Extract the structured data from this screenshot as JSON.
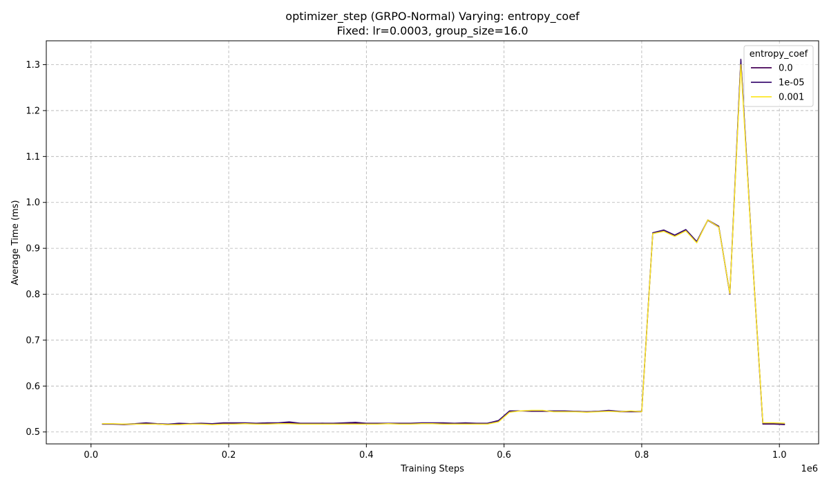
{
  "chart_data": {
    "type": "line",
    "title": "optimizer_step (GRPO-Normal) Varying: entropy_coef",
    "subtitle": "Fixed: lr=0.0003, group_size=16.0",
    "xlabel": "Training Steps",
    "ylabel": "Average Time (ms)",
    "x_scale_note": "1e6",
    "xlim": [
      -65000,
      1057000
    ],
    "ylim": [
      0.474,
      1.352
    ],
    "xticks": [
      0.0,
      0.2,
      0.4,
      0.6,
      0.8,
      1.0
    ],
    "xtick_labels": [
      "0.0",
      "0.2",
      "0.4",
      "0.6",
      "0.8",
      "1.0"
    ],
    "yticks": [
      0.5,
      0.6,
      0.7,
      0.8,
      0.9,
      1.0,
      1.1,
      1.2,
      1.3
    ],
    "ytick_labels": [
      "0.5",
      "0.6",
      "0.7",
      "0.8",
      "0.9",
      "1.0",
      "1.1",
      "1.2",
      "1.3"
    ],
    "grid": true,
    "legend": {
      "title": "entropy_coef",
      "position": "top-right"
    },
    "x": [
      16000,
      32000,
      48000,
      64000,
      80000,
      96000,
      112000,
      128000,
      144000,
      160000,
      176000,
      192000,
      208000,
      224000,
      240000,
      256000,
      272000,
      288000,
      304000,
      320000,
      336000,
      352000,
      368000,
      384000,
      400000,
      416000,
      432000,
      448000,
      464000,
      480000,
      496000,
      512000,
      528000,
      544000,
      560000,
      576000,
      592000,
      608000,
      624000,
      640000,
      656000,
      672000,
      688000,
      704000,
      720000,
      736000,
      752000,
      768000,
      784000,
      800000,
      816000,
      832000,
      848000,
      864000,
      880000,
      896000,
      912000,
      928000,
      944000,
      960000,
      976000,
      992000,
      1008000
    ],
    "series": [
      {
        "name": "0.0",
        "color": "#440154",
        "values": [
          0.517,
          0.517,
          0.516,
          0.517,
          0.519,
          0.517,
          0.516,
          0.518,
          0.517,
          0.518,
          0.517,
          0.518,
          0.519,
          0.519,
          0.518,
          0.519,
          0.519,
          0.52,
          0.518,
          0.518,
          0.519,
          0.518,
          0.519,
          0.519,
          0.518,
          0.518,
          0.518,
          0.518,
          0.518,
          0.519,
          0.519,
          0.519,
          0.518,
          0.519,
          0.518,
          0.519,
          0.524,
          0.545,
          0.546,
          0.545,
          0.545,
          0.545,
          0.545,
          0.545,
          0.544,
          0.545,
          0.546,
          0.544,
          0.544,
          0.544,
          0.932,
          0.938,
          0.927,
          0.939,
          0.913,
          0.961,
          0.946,
          0.8,
          1.31,
          0.9,
          0.517,
          0.517,
          0.516
        ]
      },
      {
        "name": "1e-05",
        "color": "#3b0f70",
        "values": [
          0.517,
          0.517,
          0.517,
          0.518,
          0.52,
          0.518,
          0.517,
          0.519,
          0.518,
          0.519,
          0.518,
          0.52,
          0.52,
          0.52,
          0.519,
          0.52,
          0.52,
          0.522,
          0.519,
          0.519,
          0.519,
          0.519,
          0.52,
          0.521,
          0.519,
          0.519,
          0.519,
          0.519,
          0.519,
          0.52,
          0.52,
          0.52,
          0.519,
          0.52,
          0.519,
          0.519,
          0.525,
          0.546,
          0.546,
          0.546,
          0.546,
          0.546,
          0.546,
          0.545,
          0.544,
          0.545,
          0.547,
          0.545,
          0.545,
          0.545,
          0.934,
          0.94,
          0.929,
          0.941,
          0.915,
          0.962,
          0.948,
          0.802,
          1.312,
          0.902,
          0.518,
          0.518,
          0.517
        ]
      },
      {
        "name": "0.001",
        "color": "#fde725",
        "values": [
          0.518,
          0.518,
          0.517,
          0.517,
          0.517,
          0.517,
          0.516,
          0.516,
          0.517,
          0.517,
          0.516,
          0.517,
          0.517,
          0.518,
          0.517,
          0.517,
          0.518,
          0.518,
          0.517,
          0.517,
          0.517,
          0.517,
          0.517,
          0.517,
          0.517,
          0.517,
          0.518,
          0.517,
          0.517,
          0.518,
          0.518,
          0.517,
          0.517,
          0.517,
          0.517,
          0.517,
          0.522,
          0.543,
          0.546,
          0.547,
          0.547,
          0.544,
          0.544,
          0.544,
          0.543,
          0.544,
          0.545,
          0.544,
          0.546,
          0.544,
          0.932,
          0.937,
          0.926,
          0.938,
          0.912,
          0.962,
          0.946,
          0.802,
          1.3,
          0.9,
          0.52,
          0.52,
          0.519
        ]
      }
    ]
  }
}
